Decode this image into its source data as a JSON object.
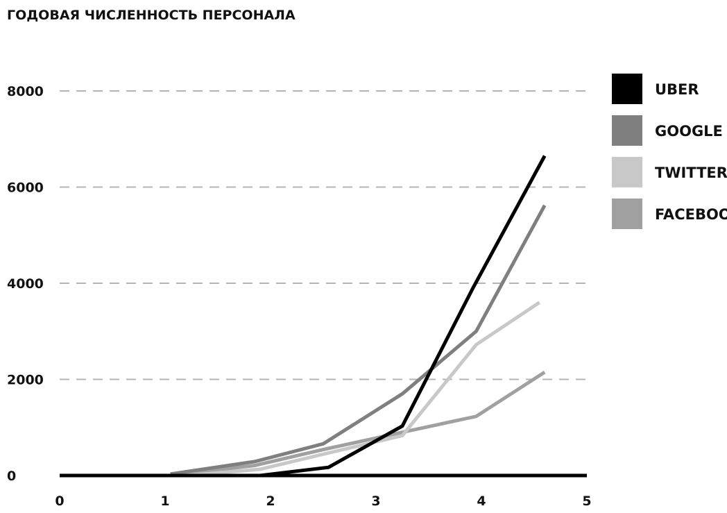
{
  "chart_data": {
    "type": "line",
    "title": "ГОДОВАЯ ЧИСЛЕННОСТЬ ПЕРСОНАЛА",
    "xlabel": "",
    "ylabel": "",
    "xlim": [
      0,
      5
    ],
    "ylim": [
      0,
      8000
    ],
    "x_ticks": [
      0,
      1,
      2,
      3,
      4,
      5
    ],
    "x_tick_labels": [
      "0",
      "1",
      "2",
      "3",
      "4",
      "5"
    ],
    "y_ticks": [
      0,
      2000,
      4000,
      6000,
      8000
    ],
    "y_tick_labels": [
      "0",
      "2000",
      "4000",
      "6000",
      "8000"
    ],
    "grid": "horizontal dashed",
    "legend_position": "right",
    "series": [
      {
        "name": "UBER",
        "color": "#000000",
        "points": [
          [
            1.9,
            0
          ],
          [
            2.55,
            170
          ],
          [
            3.25,
            1030
          ],
          [
            3.92,
            3900
          ],
          [
            4.6,
            6650
          ]
        ]
      },
      {
        "name": "GOOGLE",
        "color": "#7f7f7f",
        "points": [
          [
            1.05,
            30
          ],
          [
            1.85,
            290
          ],
          [
            2.5,
            660
          ],
          [
            3.25,
            1700
          ],
          [
            3.95,
            3000
          ],
          [
            4.6,
            5620
          ]
        ]
      },
      {
        "name": "TWITTER",
        "color": "#c8c8c8",
        "points": [
          [
            1.2,
            0
          ],
          [
            1.9,
            130
          ],
          [
            2.55,
            470
          ],
          [
            3.25,
            830
          ],
          [
            3.95,
            2720
          ],
          [
            4.55,
            3600
          ]
        ]
      },
      {
        "name": "FACEBOOK",
        "color": "#a0a0a0",
        "points": [
          [
            1.05,
            0
          ],
          [
            1.85,
            210
          ],
          [
            2.5,
            540
          ],
          [
            3.25,
            900
          ],
          [
            3.95,
            1230
          ],
          [
            4.6,
            2150
          ]
        ]
      }
    ]
  }
}
